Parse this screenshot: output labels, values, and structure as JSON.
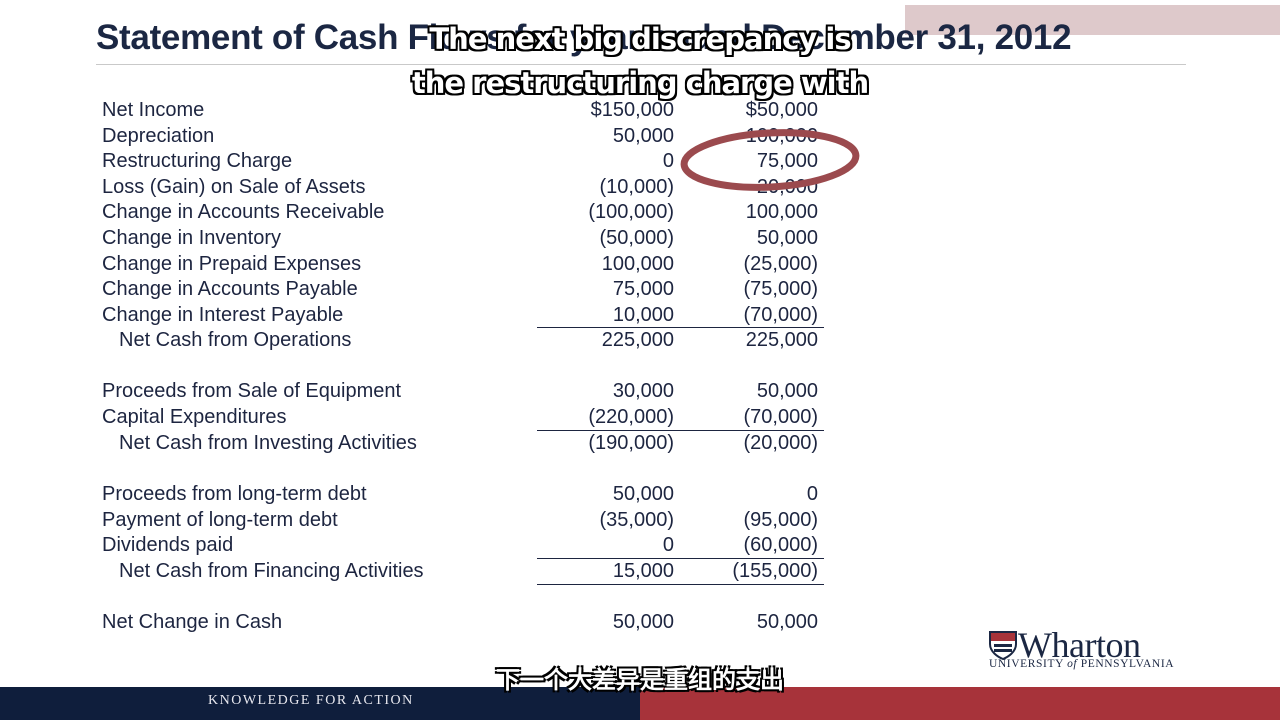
{
  "slide": {
    "title": "Statement of Cash Flows for year ended December 31, 2012",
    "subtitle_en_line1": "The next big discrepancy is",
    "subtitle_en_line2": "the restructuring charge with",
    "subtitle_cn": "下一个大差异是重组的支出",
    "footer_text": "KNOWLEDGE FOR ACTION",
    "logo": {
      "wordmark": "Wharton",
      "university_prefix": "UNIVERSITY",
      "university_of": "of",
      "university_suffix": "PENNSYLVANIA",
      "shield_icon": "penn-shield-icon"
    },
    "colors": {
      "navy": "#0f1e3c",
      "crimson": "#a7333a",
      "highlight": "#9b4a4e",
      "text": "#1d2540"
    }
  },
  "statement": {
    "rows": [
      {
        "label": "Net Income",
        "col1": "$150,000",
        "col2": "$50,000"
      },
      {
        "label": "Depreciation",
        "col1": "50,000",
        "col2": "100,000"
      },
      {
        "label": "Restructuring Charge",
        "col1": "0",
        "col2": "75,000"
      },
      {
        "label": "Loss (Gain) on Sale of Assets",
        "col1": "(10,000)",
        "col2": "20,000"
      },
      {
        "label": "Change in Accounts Receivable",
        "col1": "(100,000)",
        "col2": "100,000"
      },
      {
        "label": "Change in Inventory",
        "col1": "(50,000)",
        "col2": "50,000"
      },
      {
        "label": "Change in Prepaid Expenses",
        "col1": "100,000",
        "col2": "(25,000)"
      },
      {
        "label": "Change in Accounts Payable",
        "col1": "75,000",
        "col2": "(75,000)"
      },
      {
        "label": "Change in Interest Payable",
        "col1": "10,000",
        "col2": "(70,000)"
      },
      {
        "label": "Net Cash from Operations",
        "col1": "225,000",
        "col2": "225,000"
      },
      {
        "label": "Proceeds from Sale of Equipment",
        "col1": "30,000",
        "col2": "50,000"
      },
      {
        "label": "Capital Expenditures",
        "col1": "(220,000)",
        "col2": "(70,000)"
      },
      {
        "label": "Net Cash from Investing Activities",
        "col1": "(190,000)",
        "col2": "(20,000)"
      },
      {
        "label": "Proceeds from long-term debt",
        "col1": "50,000",
        "col2": "0"
      },
      {
        "label": "Payment of long-term debt",
        "col1": "(35,000)",
        "col2": "(95,000)"
      },
      {
        "label": "Dividends paid",
        "col1": "0",
        "col2": "(60,000)"
      },
      {
        "label": "Net Cash from Financing Activities",
        "col1": "15,000",
        "col2": "(155,000)"
      },
      {
        "label": "Net Change in Cash",
        "col1": "50,000",
        "col2": "50,000"
      }
    ]
  }
}
